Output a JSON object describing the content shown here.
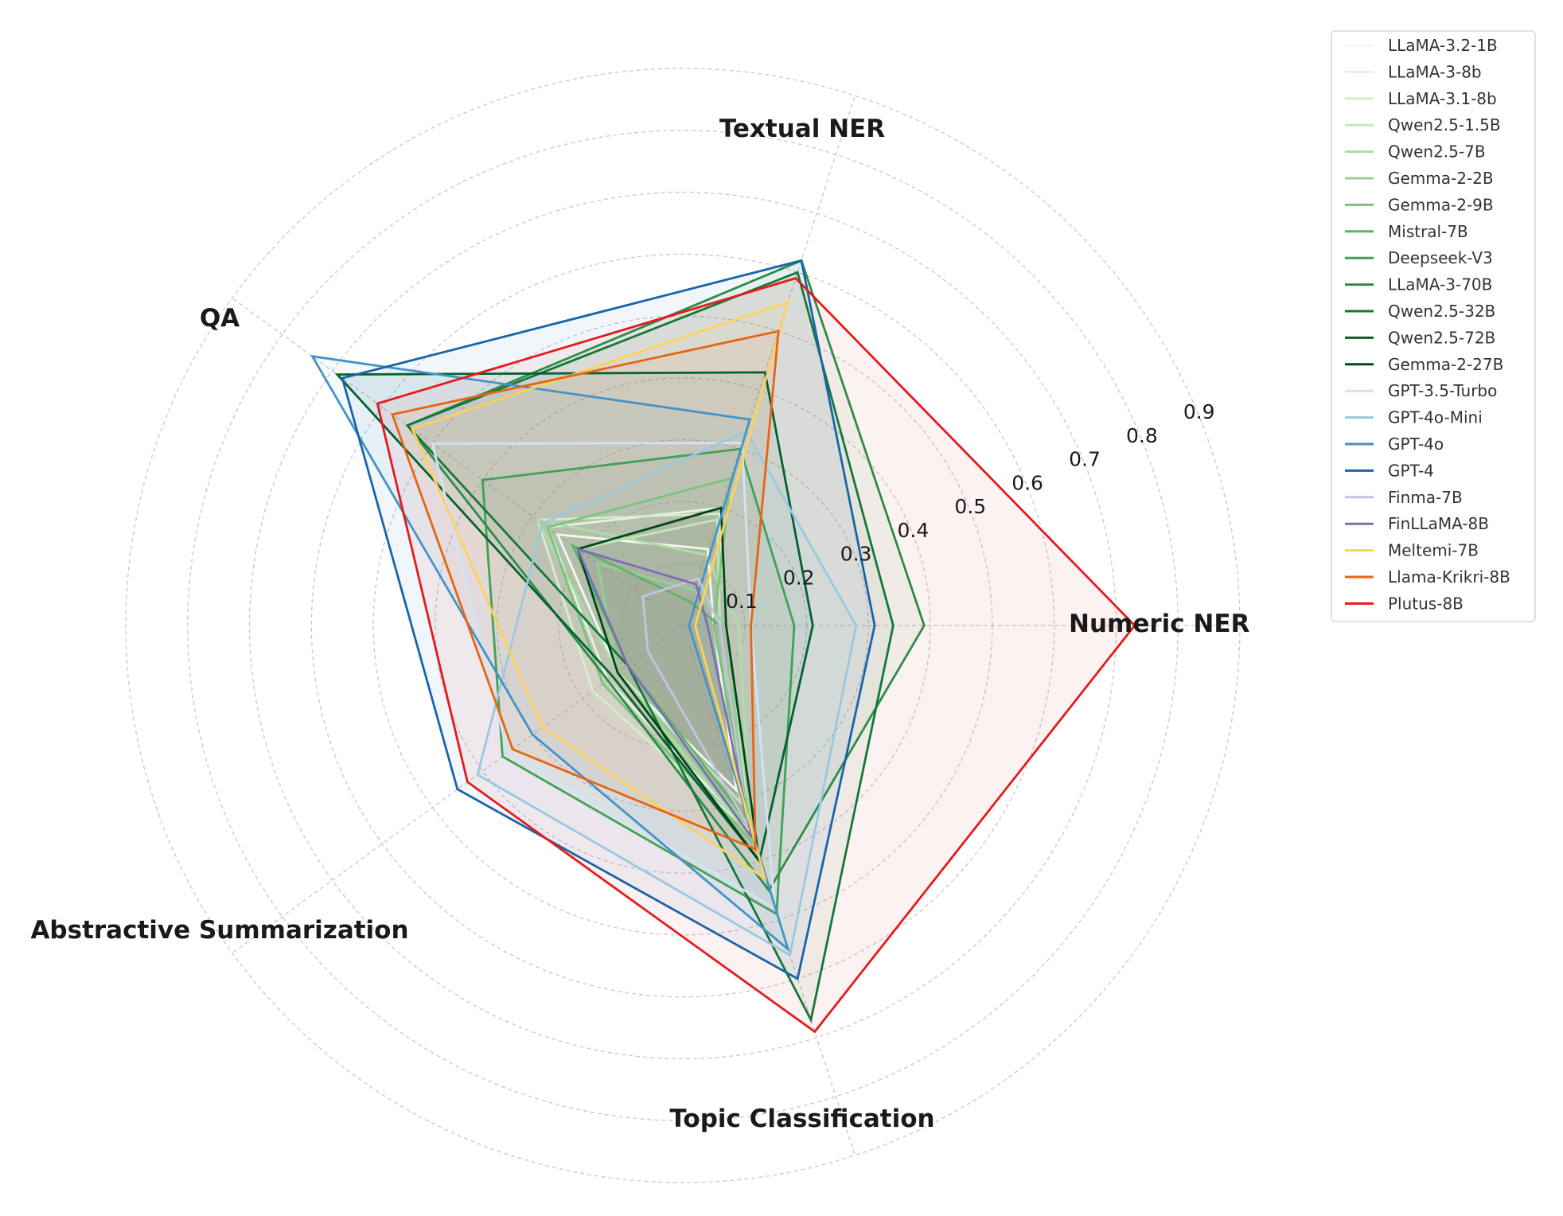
{
  "chart_data": {
    "type": "radar",
    "axes": [
      "Numeric NER",
      "Textual NER",
      "QA",
      "Abstractive Summarization",
      "Topic Classification"
    ],
    "rlim": [
      0,
      0.9
    ],
    "ticks": [
      "0.1",
      "0.2",
      "0.3",
      "0.4",
      "0.5",
      "0.6",
      "0.7",
      "0.8",
      "0.9"
    ],
    "tick_values": [
      0.1,
      0.2,
      0.3,
      0.4,
      0.5,
      0.6,
      0.7,
      0.8,
      0.9
    ],
    "legend_position": "top-right",
    "grid": true,
    "series": [
      {
        "name": "LLaMA-3.2-1B",
        "color": "#f2faef",
        "values": [
          0.05,
          0.13,
          0.25,
          0.13,
          0.28
        ]
      },
      {
        "name": "LLaMA-3-8b",
        "color": "#e3f4de",
        "values": [
          0.07,
          0.2,
          0.27,
          0.15,
          0.35
        ]
      },
      {
        "name": "LLaMA-3.1-8b",
        "color": "#d3eecc",
        "values": [
          0.07,
          0.19,
          0.29,
          0.18,
          0.35
        ]
      },
      {
        "name": "Qwen2.5-1.5B",
        "color": "#c2e7bb",
        "values": [
          0.06,
          0.18,
          0.21,
          0.13,
          0.3
        ]
      },
      {
        "name": "Qwen2.5-7B",
        "color": "#acdea6",
        "values": [
          0.09,
          0.12,
          0.29,
          0.13,
          0.36
        ]
      },
      {
        "name": "Gemma-2-2B",
        "color": "#93d390",
        "values": [
          0.07,
          0.06,
          0.17,
          0.13,
          0.34
        ]
      },
      {
        "name": "Gemma-2-9B",
        "color": "#79c47a",
        "values": [
          0.05,
          0.25,
          0.27,
          0.16,
          0.37
        ]
      },
      {
        "name": "Mistral-7B",
        "color": "#5db465",
        "values": [
          0.06,
          0.04,
          0.22,
          0.11,
          0.33
        ]
      },
      {
        "name": "Deepseek-V3",
        "color": "#3fa257",
        "values": [
          0.18,
          0.3,
          0.4,
          0.36,
          0.49
        ]
      },
      {
        "name": "LLaMA-3-70B",
        "color": "#2c8c47",
        "values": [
          0.39,
          0.62,
          0.55,
          0.15,
          0.45
        ]
      },
      {
        "name": "Qwen2.5-32B",
        "color": "#147839",
        "values": [
          0.34,
          0.6,
          0.55,
          0.11,
          0.67
        ]
      },
      {
        "name": "Qwen2.5-72B",
        "color": "#05612d",
        "values": [
          0.21,
          0.43,
          0.69,
          0.14,
          0.4
        ]
      },
      {
        "name": "Gemma-2-27B",
        "color": "#00441b",
        "values": [
          0.07,
          0.2,
          0.21,
          0.13,
          0.4
        ]
      },
      {
        "name": "GPT-3.5-Turbo",
        "color": "#d2e3f3",
        "values": [
          0.11,
          0.31,
          0.5,
          0.35,
          0.48
        ]
      },
      {
        "name": "GPT-4o-Mini",
        "color": "#9ac8e0",
        "values": [
          0.28,
          0.33,
          0.28,
          0.41,
          0.56
        ]
      },
      {
        "name": "GPT-4o",
        "color": "#4493c7",
        "values": [
          0.01,
          0.35,
          0.74,
          0.3,
          0.55
        ]
      },
      {
        "name": "GPT-4",
        "color": "#1964a8",
        "values": [
          0.31,
          0.62,
          0.68,
          0.45,
          0.6
        ]
      },
      {
        "name": "Finma-7B",
        "color": "#c5c3e0",
        "values": [
          0.06,
          0.08,
          0.08,
          0.07,
          0.34
        ]
      },
      {
        "name": "FinLLaMA-8B",
        "color": "#7a6fb5",
        "values": [
          0.04,
          0.07,
          0.21,
          0.11,
          0.36
        ]
      },
      {
        "name": "Meltemi-7B",
        "color": "#fdd15c",
        "values": [
          0.02,
          0.55,
          0.54,
          0.28,
          0.43
        ]
      },
      {
        "name": "Llama-Krikri-8B",
        "color": "#e66514",
        "values": [
          0.11,
          0.5,
          0.58,
          0.34,
          0.38
        ]
      },
      {
        "name": "Plutus-8B",
        "color": "#e41a1c",
        "values": [
          0.73,
          0.59,
          0.61,
          0.43,
          0.69
        ]
      }
    ]
  }
}
